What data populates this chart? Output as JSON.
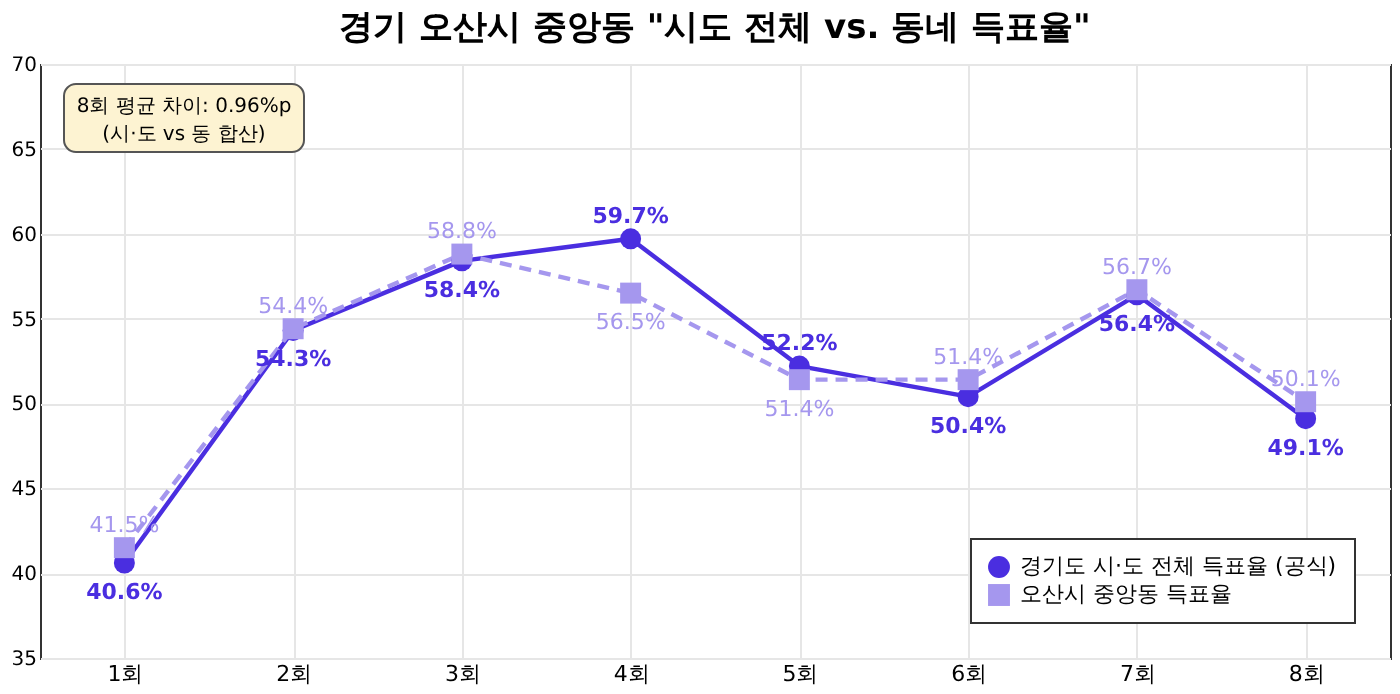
{
  "chart_data": {
    "type": "line",
    "title": "경기 오산시 중앙동 \"시도 전체 vs. 동네 득표율\"",
    "categories": [
      "1회",
      "2회",
      "3회",
      "4회",
      "5회",
      "6회",
      "7회",
      "8회"
    ],
    "series": [
      {
        "name": "경기도 시·도 전체 득표율 (공식)",
        "color": "#4a2ee0",
        "marker": "circle",
        "line_style": "solid",
        "values": [
          40.6,
          54.3,
          58.4,
          59.7,
          52.2,
          50.4,
          56.4,
          49.1
        ],
        "value_labels": [
          "40.6%",
          "54.3%",
          "58.4%",
          "59.7%",
          "52.2%",
          "50.4%",
          "56.4%",
          "49.1%"
        ]
      },
      {
        "name": "오산시 중앙동 득표율",
        "color": "#a597ee",
        "marker": "square",
        "line_style": "dashed",
        "values": [
          41.5,
          54.4,
          58.8,
          56.5,
          51.4,
          51.4,
          56.7,
          50.1
        ],
        "value_labels": [
          "41.5%",
          "54.4%",
          "58.8%",
          "56.5%",
          "51.4%",
          "51.4%",
          "56.7%",
          "50.1%"
        ]
      }
    ],
    "ylim": [
      35,
      70
    ],
    "yticks": [
      35,
      40,
      45,
      50,
      55,
      60,
      65,
      70
    ],
    "grid": true,
    "legend": "bottom right",
    "annotations": [
      "8회 평균 차이: 0.96%p\n(시·도 vs 동 합산)"
    ]
  }
}
